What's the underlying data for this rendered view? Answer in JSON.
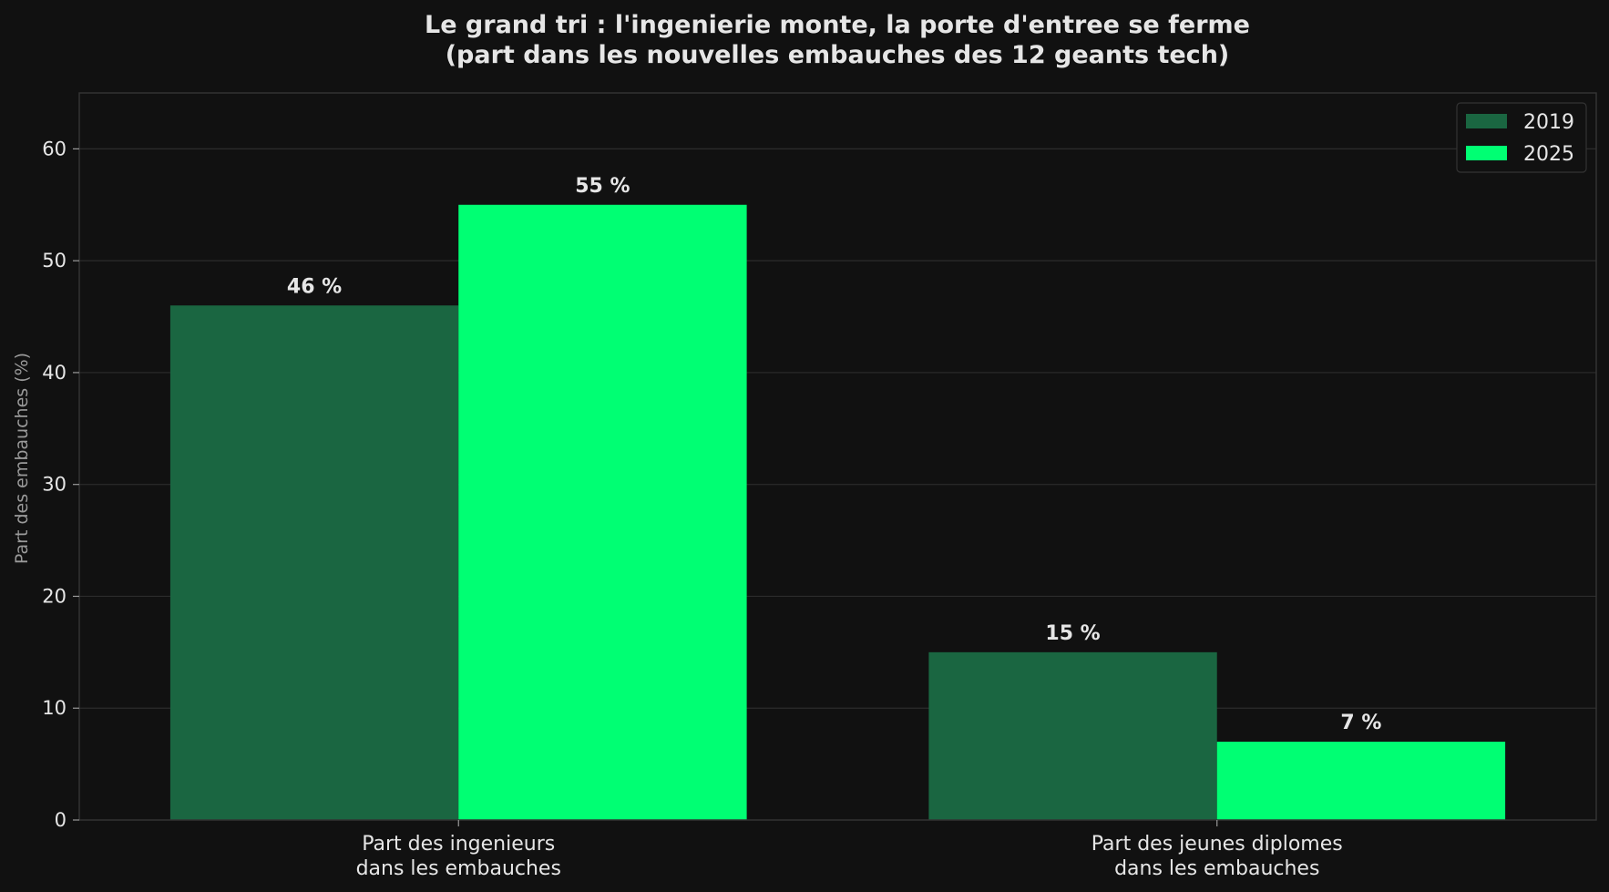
{
  "chart_data": {
    "type": "bar",
    "title_lines": [
      "Le grand tri : l'ingenierie monte, la porte d'entree se ferme",
      "(part dans les nouvelles embauches des 12 geants tech)"
    ],
    "xlabel": "",
    "ylabel": "Part des embauches (%)",
    "categories": [
      [
        "Part des ingenieurs",
        "dans les embauches"
      ],
      [
        "Part des jeunes diplomes",
        "dans les embauches"
      ]
    ],
    "series": [
      {
        "name": "2019",
        "color": "#1a6641",
        "values": [
          46,
          15
        ],
        "labels": [
          "46 %",
          "15 %"
        ]
      },
      {
        "name": "2025",
        "color": "#00ff73",
        "values": [
          55,
          7
        ],
        "labels": [
          "55 %",
          "7 %"
        ]
      }
    ],
    "ylim": [
      0,
      65
    ],
    "yticks": [
      0,
      10,
      20,
      30,
      40,
      50,
      60
    ],
    "grid": true,
    "legend": "top-right",
    "colors": {
      "background": "#111111",
      "grid": "#2c2c2c",
      "spine": "#333333",
      "text": "#e6e6e6",
      "muted": "#9a9a9a"
    }
  }
}
